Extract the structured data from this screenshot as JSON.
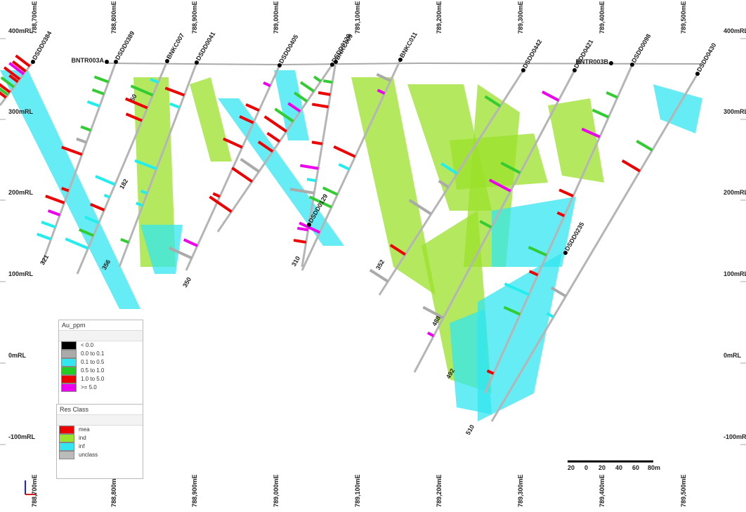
{
  "axes": {
    "eastings": [
      "788,700mE",
      "788,800mE",
      "788,900mE",
      "789,000mE",
      "789,100mE",
      "789,200mE",
      "789,300mE",
      "789,400mE",
      "789,500mE"
    ],
    "elevations": [
      "400mRL",
      "300mRL",
      "200mRL",
      "100mRL",
      "0mRL",
      "-100mRL"
    ]
  },
  "holes": [
    {
      "label": "DSDD0384"
    },
    {
      "label": "BNTR003A"
    },
    {
      "label": "DSDD0389"
    },
    {
      "label": "BNKC007"
    },
    {
      "label": "DSDD0041"
    },
    {
      "label": "DSDD0405"
    },
    {
      "label": "DSDD0120"
    },
    {
      "label": "BNKC009"
    },
    {
      "label": "BNKC011"
    },
    {
      "label": "DSDD0442"
    },
    {
      "label": "DSDD0421"
    },
    {
      "label": "BNTR003B"
    },
    {
      "label": "DSDD0098"
    },
    {
      "label": "DSDD0430"
    },
    {
      "label": "DSDD0129"
    },
    {
      "label": "DSDD0235"
    }
  ],
  "depth_labels": [
    "50",
    "182",
    "321",
    "356",
    "350",
    "310",
    "352",
    "488",
    "492",
    "510"
  ],
  "legends": [
    {
      "title": "Au_ppm",
      "items": [
        "< 0.0",
        "0.0 to 0.1",
        "0.1 to 0.5",
        "0.5 to 1.0",
        "1.0 to 5.0",
        ">= 5.0"
      ]
    },
    {
      "title": "Res Class",
      "items": [
        "mea",
        "ind",
        "inf",
        "unclass"
      ]
    }
  ],
  "scale_bar": {
    "labels": [
      "20",
      "0",
      "20",
      "40",
      "60",
      "80m"
    ]
  }
}
